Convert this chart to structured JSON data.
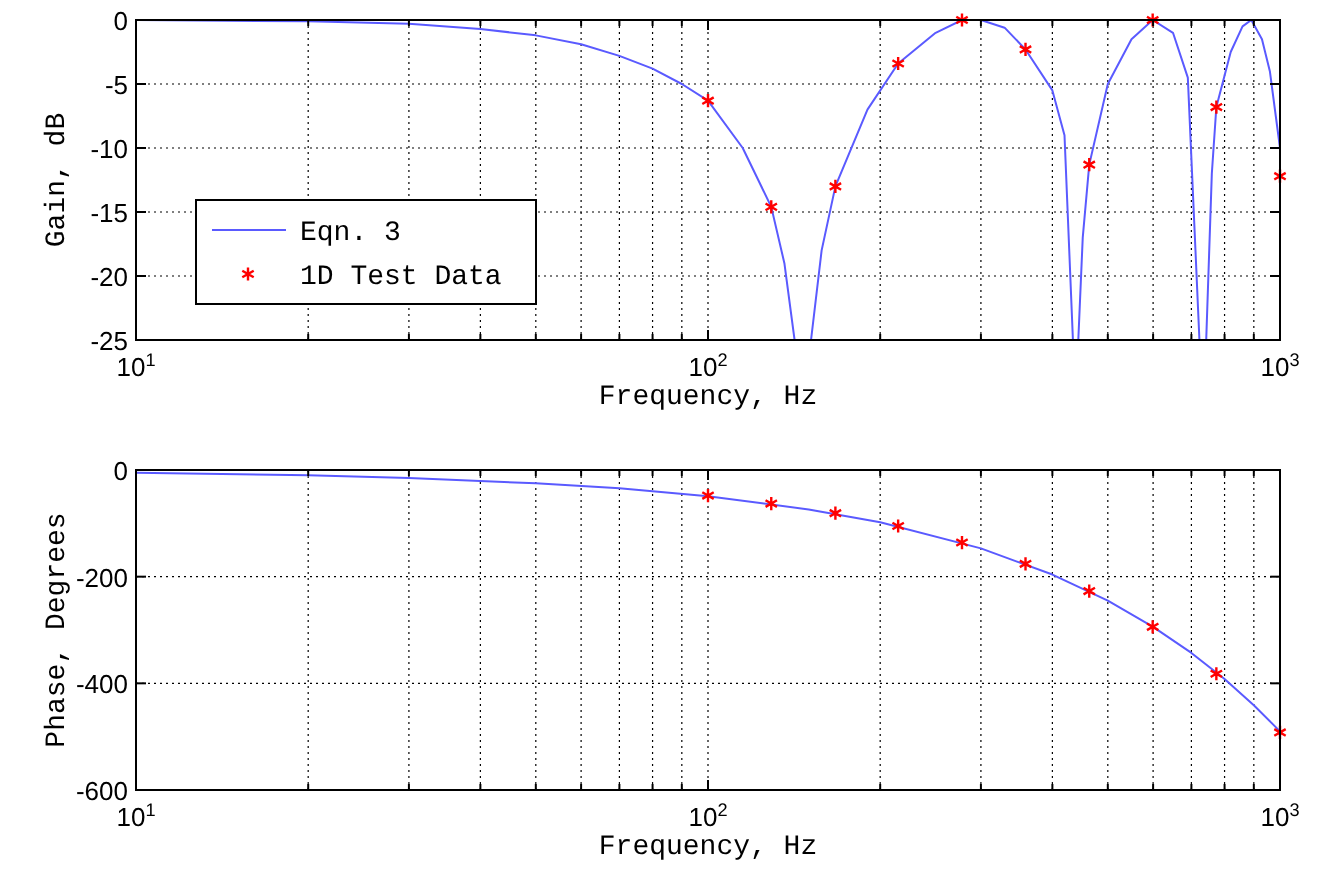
{
  "chart_data": [
    {
      "type": "line",
      "xlabel": "Frequency, Hz",
      "ylabel": "Gain, dB",
      "xlim": [
        10,
        1000
      ],
      "ylim": [
        -25,
        0
      ],
      "log": "x",
      "grid": true,
      "legend": "bottom left",
      "xticks": [
        {
          "value": 10,
          "label": "10$^{1}$"
        },
        {
          "value": 20,
          "label": null
        },
        {
          "value": 30,
          "label": null
        },
        {
          "value": 40,
          "label": null
        },
        {
          "value": 50,
          "label": null
        },
        {
          "value": 60,
          "label": null
        },
        {
          "value": 70,
          "label": null
        },
        {
          "value": 80,
          "label": null
        },
        {
          "value": 90,
          "label": null
        },
        {
          "value": 100,
          "label": "10$^{2}$"
        },
        {
          "value": 200,
          "label": null
        },
        {
          "value": 300,
          "label": null
        },
        {
          "value": 400,
          "label": null
        },
        {
          "value": 500,
          "label": null
        },
        {
          "value": 600,
          "label": null
        },
        {
          "value": 700,
          "label": null
        },
        {
          "value": 800,
          "label": null
        },
        {
          "value": 900,
          "label": null
        },
        {
          "value": 1000,
          "label": "10$^{3}$"
        }
      ],
      "yticks": [
        -25,
        -20,
        -15,
        -10,
        -5,
        0
      ],
      "series": [
        {
          "name": "Eqn. 3",
          "color": "#5a5aff",
          "marker": "none",
          "x": [
            10,
            20,
            30,
            40,
            50,
            60,
            70,
            80,
            90,
            100,
            115,
            129,
            136,
            141.7,
            146,
            151.4,
            158,
            167,
            190,
            215,
            250,
            278,
            300,
            330,
            359,
            400,
            420,
            434.5,
            439,
            444,
            452,
            464,
            500,
            550,
            599,
            650,
            690,
            723,
            733,
            743,
            760,
            774,
            820,
            860,
            891,
            930,
            960,
            1000
          ],
          "values": [
            0,
            -0.1,
            -0.3,
            -0.7,
            -1.2,
            -1.9,
            -2.8,
            -3.8,
            -5,
            -6.3,
            -10,
            -14.6,
            -19,
            -25,
            null,
            -25,
            -18,
            -13,
            -7,
            -3.4,
            -1,
            0,
            0,
            -0.6,
            -2.3,
            -5.5,
            -9,
            -25,
            null,
            -25,
            -17,
            -11.3,
            -5,
            -1.5,
            0,
            -1,
            -4.5,
            -25,
            null,
            -25,
            -12,
            -6.8,
            -2.5,
            -0.5,
            0,
            -1.5,
            -4,
            -10
          ]
        },
        {
          "name": "1D Test Data",
          "type": "scatter",
          "color": "#ff0000",
          "marker": "cross",
          "x": [
            100,
            129,
            167,
            215,
            278,
            359,
            464,
            599,
            774,
            1000
          ],
          "values": [
            -6.3,
            -14.6,
            -13,
            -3.4,
            0,
            -2.3,
            -11.3,
            0,
            -6.8,
            -12.2
          ]
        }
      ]
    },
    {
      "type": "line",
      "xlabel": "Frequency, Hz",
      "ylabel": "Phase, Degrees",
      "xlim": [
        10,
        1000
      ],
      "ylim": [
        -600,
        0
      ],
      "log": "x",
      "grid": true,
      "xticks": [
        {
          "value": 10,
          "label": "10$^{1}$"
        },
        {
          "value": 20,
          "label": null
        },
        {
          "value": 30,
          "label": null
        },
        {
          "value": 40,
          "label": null
        },
        {
          "value": 50,
          "label": null
        },
        {
          "value": 60,
          "label": null
        },
        {
          "value": 70,
          "label": null
        },
        {
          "value": 80,
          "label": null
        },
        {
          "value": 90,
          "label": null
        },
        {
          "value": 100,
          "label": "10$^{2}$"
        },
        {
          "value": 200,
          "label": null
        },
        {
          "value": 300,
          "label": null
        },
        {
          "value": 400,
          "label": null
        },
        {
          "value": 500,
          "label": null
        },
        {
          "value": 600,
          "label": null
        },
        {
          "value": 700,
          "label": null
        },
        {
          "value": 800,
          "label": null
        },
        {
          "value": 900,
          "label": null
        },
        {
          "value": 1000,
          "label": "10$^{3}$"
        }
      ],
      "yticks": [
        -600,
        -400,
        -200,
        0
      ],
      "series": [
        {
          "color": "#5a5aff",
          "marker": "none",
          "x": [
            10,
            20,
            30,
            50,
            70,
            100,
            150,
            200,
            300,
            400,
            500,
            600,
            700,
            800,
            900,
            1000
          ],
          "values": [
            -5,
            -10,
            -15,
            -25,
            -34,
            -49,
            -74,
            -98,
            -147,
            -196,
            -245,
            -294,
            -343,
            -392,
            -441,
            -490
          ]
        },
        {
          "type": "scatter",
          "color": "#ff0000",
          "marker": "cross",
          "x": [
            100,
            129,
            167,
            215,
            278,
            359,
            464,
            599,
            774,
            1000
          ],
          "values": [
            -48,
            -63,
            -81,
            -105,
            -136,
            -176,
            -227,
            -294,
            -382,
            -492
          ]
        }
      ]
    }
  ]
}
